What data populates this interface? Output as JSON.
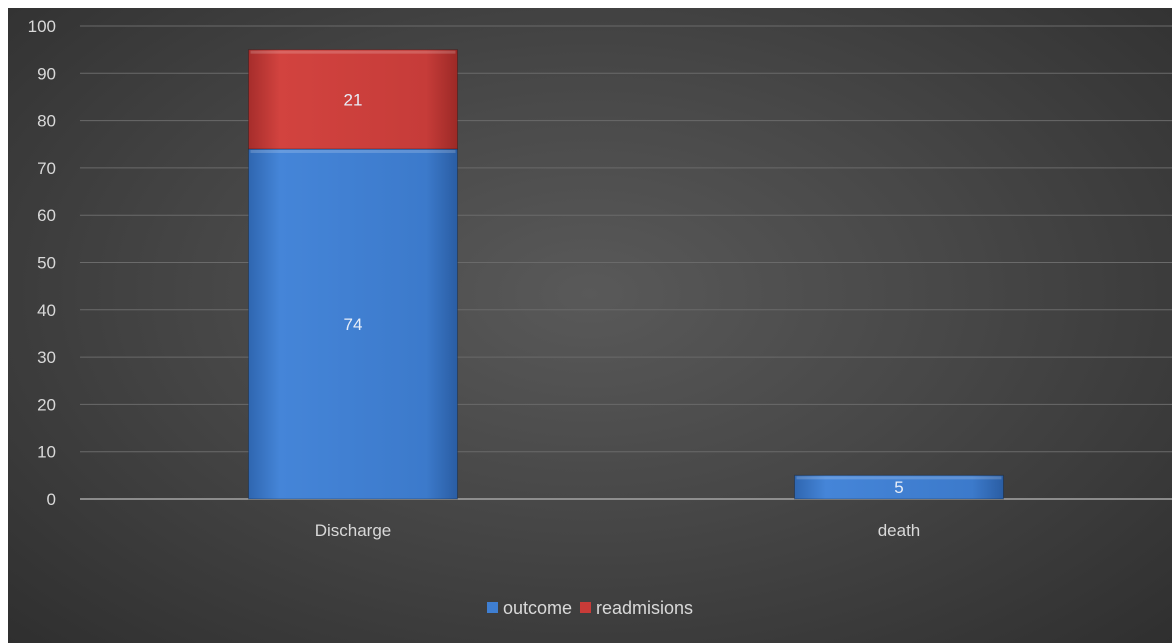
{
  "chart_data": {
    "type": "bar",
    "stacked": true,
    "categories": [
      "Discharge",
      "death"
    ],
    "series": [
      {
        "name": "outcome",
        "values": [
          74,
          5
        ],
        "color": "#3f7fd2"
      },
      {
        "name": "readmisions",
        "values": [
          21,
          0
        ],
        "color": "#c83b38"
      }
    ],
    "ylim": [
      0,
      100
    ],
    "yticks": [
      0,
      10,
      20,
      30,
      40,
      50,
      60,
      70,
      80,
      90,
      100
    ],
    "grid": true,
    "legend_position": "bottom",
    "title": "",
    "xlabel": "",
    "ylabel": ""
  }
}
